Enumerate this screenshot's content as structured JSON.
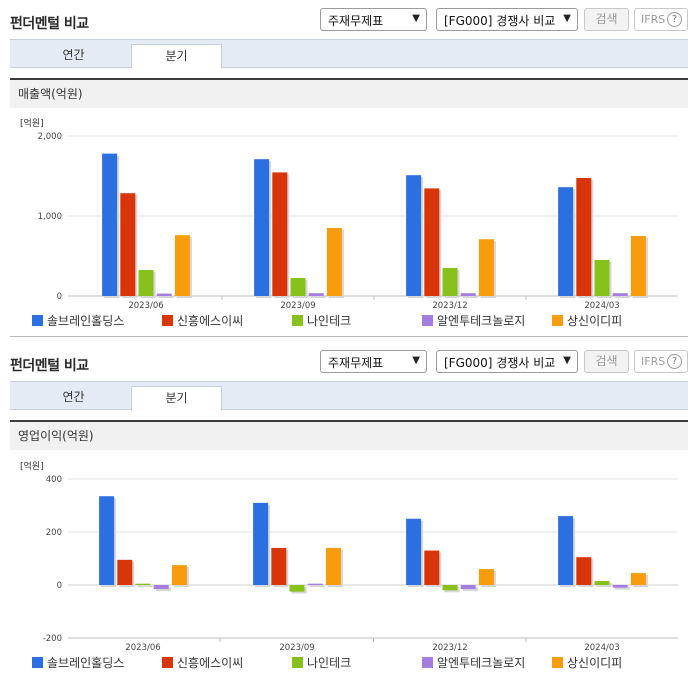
{
  "panels": [
    {
      "title": "펀더멘털 비교",
      "select_a": "주재무제표",
      "select_b": "[FG000] 경쟁사 비교",
      "search_label": "검색",
      "ifrs_label": "IFRS",
      "help_label": "?",
      "tabs": [
        "연간",
        "분기"
      ],
      "active_tab": 1,
      "section_title": "매출액(억원)",
      "unit_label": "[억원]",
      "chart_data": {
        "type": "bar",
        "title": "매출액(억원)",
        "ylabel": "[억원]",
        "ylim": [
          0,
          2000
        ],
        "yticks": [
          0,
          1000,
          2000
        ],
        "ytick_labels": [
          "0",
          "1,000",
          "2,000"
        ],
        "categories": [
          "2023/06",
          "2023/09",
          "2023/12",
          "2024/03"
        ],
        "series": [
          {
            "name": "솔브레인홀딩스",
            "color": "#2b6fe0",
            "values": [
              1780,
              1710,
              1510,
              1360
            ]
          },
          {
            "name": "신흥에스이씨",
            "color": "#d9350b",
            "values": [
              1285,
              1545,
              1345,
              1475
            ]
          },
          {
            "name": "나인테크",
            "color": "#86c21b",
            "values": [
              325,
              225,
              350,
              450
            ]
          },
          {
            "name": "알엔투테크놀로지",
            "color": "#a57de0",
            "values": [
              30,
              35,
              35,
              35
            ]
          },
          {
            "name": "상신이디피",
            "color": "#f79c0a",
            "values": [
              760,
              850,
              710,
              750
            ]
          }
        ]
      }
    },
    {
      "title": "펀더멘털 비교",
      "select_a": "주재무제표",
      "select_b": "[FG000] 경쟁사 비교",
      "search_label": "검색",
      "ifrs_label": "IFRS",
      "help_label": "?",
      "tabs": [
        "연간",
        "분기"
      ],
      "active_tab": 1,
      "section_title": "영업이익(억원)",
      "unit_label": "[억원]",
      "chart_data": {
        "type": "bar",
        "title": "영업이익(억원)",
        "ylabel": "[억원]",
        "ylim": [
          -200,
          400
        ],
        "yticks": [
          -200,
          0,
          200,
          400
        ],
        "ytick_labels": [
          "-200",
          "0",
          "200",
          "400"
        ],
        "categories": [
          "2023/06",
          "2023/09",
          "2023/12",
          "2024/03"
        ],
        "series": [
          {
            "name": "솔브레인홀딩스",
            "color": "#2b6fe0",
            "values": [
              335,
              310,
              250,
              260
            ]
          },
          {
            "name": "신흥에스이씨",
            "color": "#d9350b",
            "values": [
              95,
              140,
              130,
              105
            ]
          },
          {
            "name": "나인테크",
            "color": "#86c21b",
            "values": [
              5,
              -25,
              -20,
              15
            ]
          },
          {
            "name": "알엔투테크놀로지",
            "color": "#a57de0",
            "values": [
              -15,
              5,
              -15,
              -10
            ]
          },
          {
            "name": "상신이디피",
            "color": "#f79c0a",
            "values": [
              75,
              140,
              60,
              45
            ]
          }
        ]
      }
    }
  ]
}
